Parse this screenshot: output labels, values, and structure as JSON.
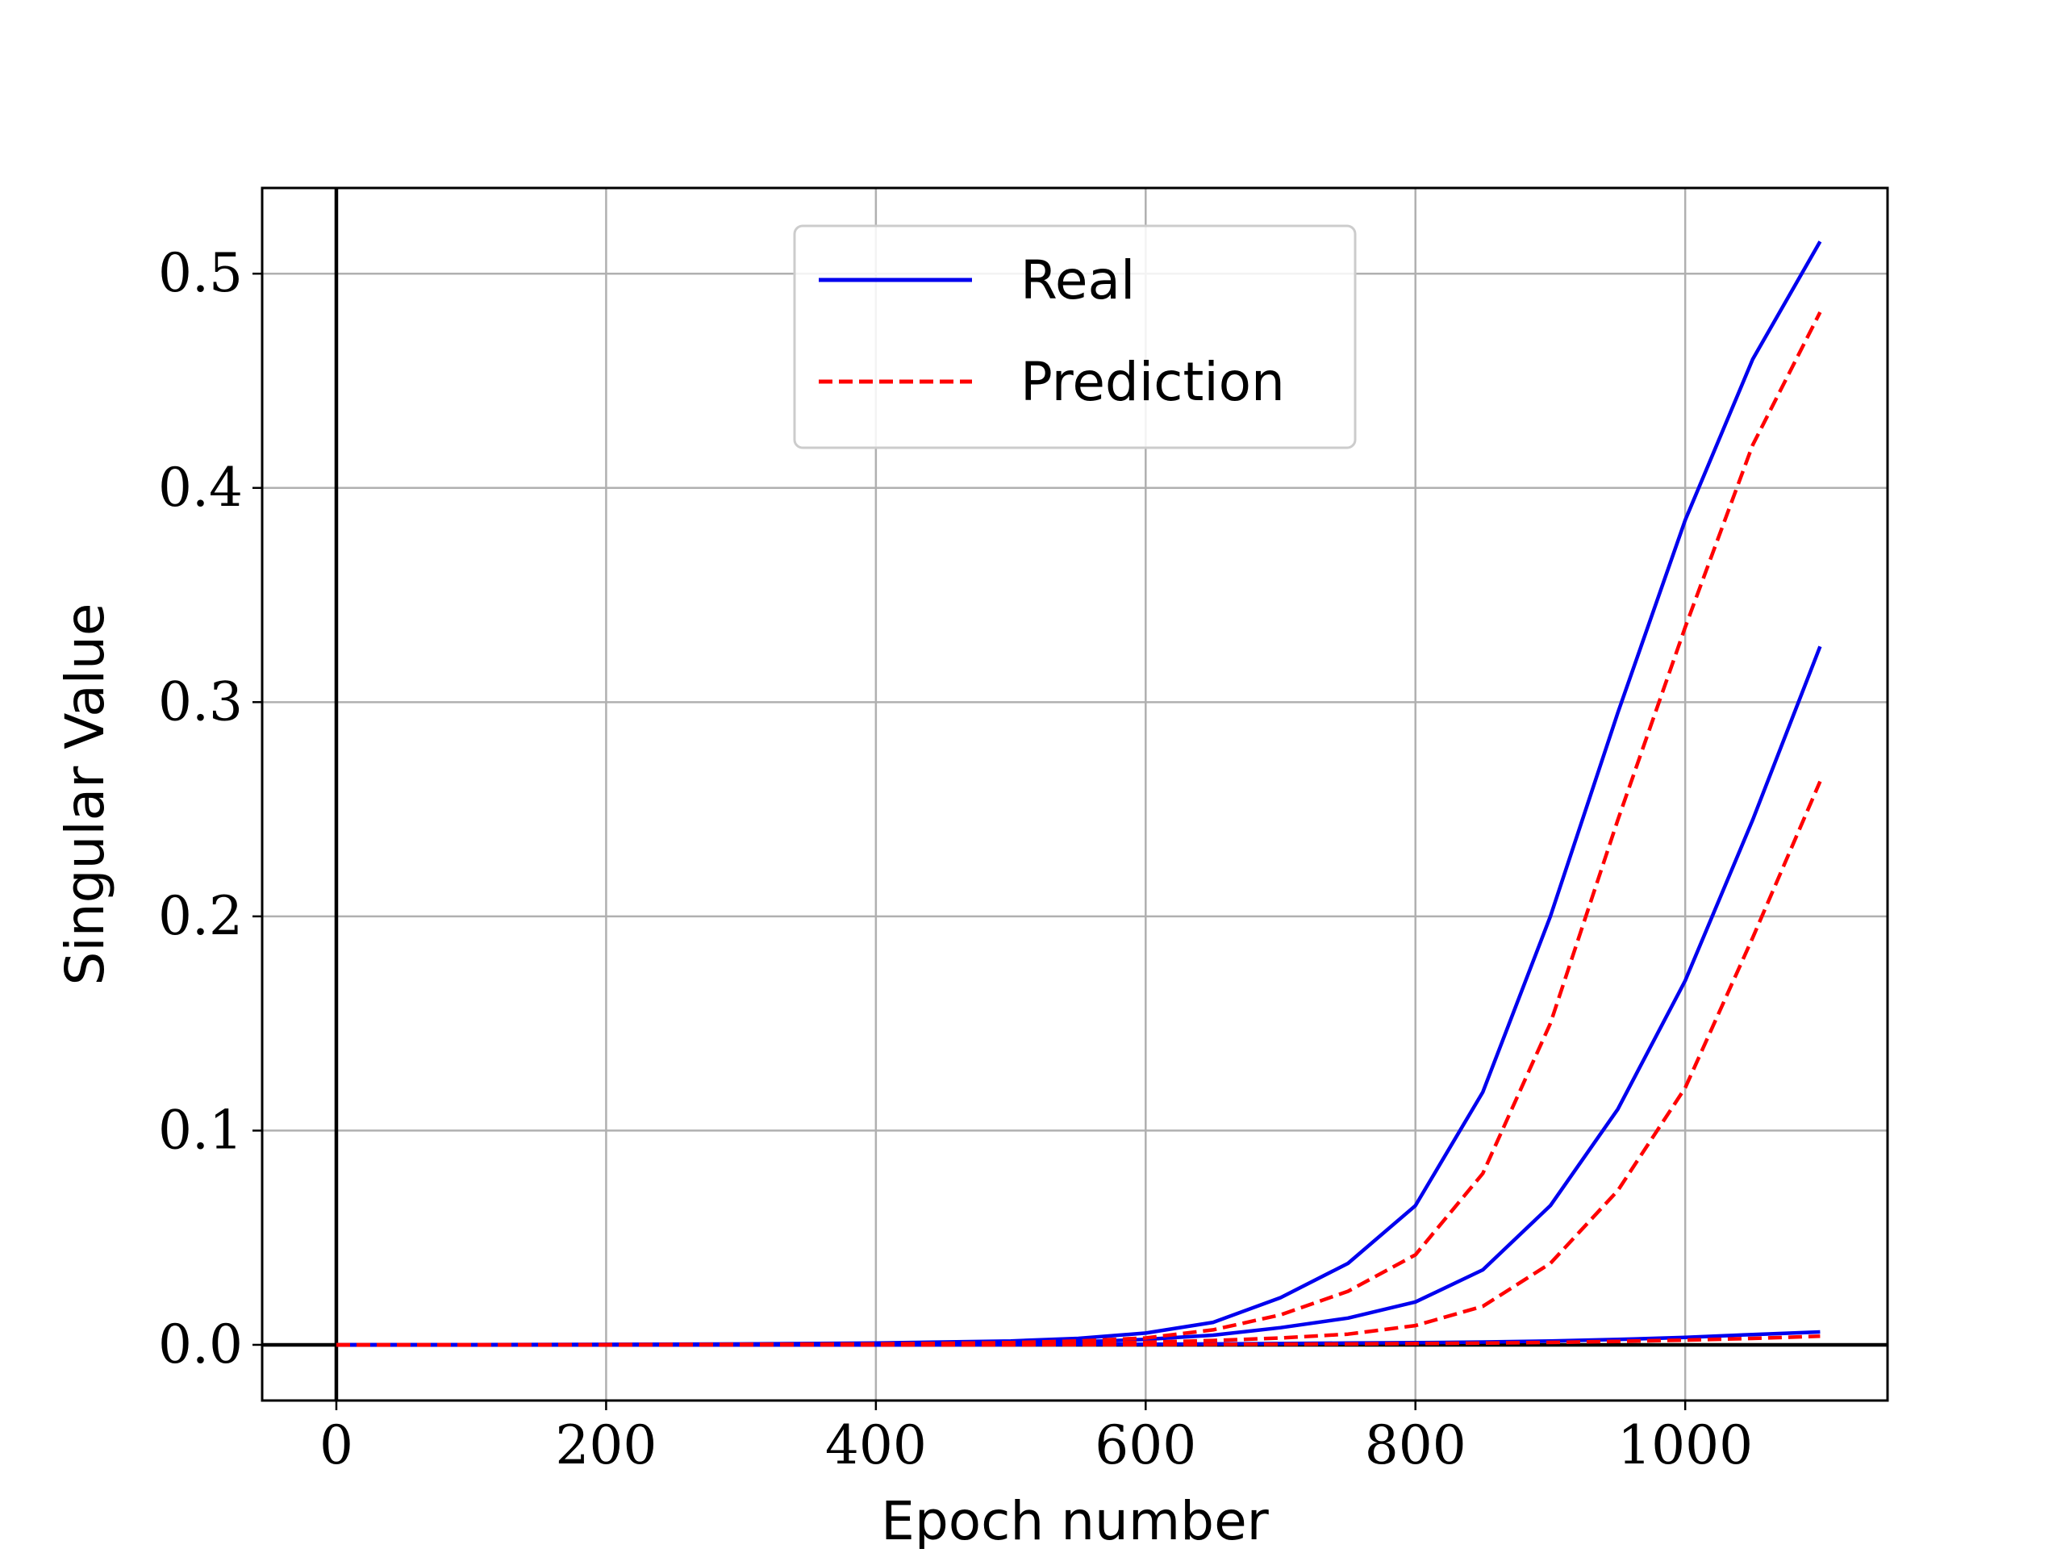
{
  "chart_data": {
    "type": "line",
    "title": "",
    "xlabel": "Epoch number",
    "ylabel": "Singular Value",
    "xlim": [
      -55,
      1150
    ],
    "ylim": [
      -0.026,
      0.54
    ],
    "xticks": [
      0,
      200,
      400,
      600,
      800,
      1000
    ],
    "yticks": [
      0.0,
      0.1,
      0.2,
      0.3,
      0.4,
      0.5
    ],
    "xtick_labels": [
      "0",
      "200",
      "400",
      "600",
      "800",
      "1000"
    ],
    "ytick_labels": [
      "0.0",
      "0.1",
      "0.2",
      "0.3",
      "0.4",
      "0.5"
    ],
    "grid": true,
    "reference_lines": {
      "x": 0,
      "y": 0
    },
    "legend": {
      "placement": "top-center",
      "entries": [
        "Real",
        "Prediction"
      ]
    },
    "colors": {
      "Real": "#0000ee",
      "Prediction": "#ff0000"
    },
    "x": [
      0,
      100,
      200,
      300,
      400,
      500,
      550,
      600,
      650,
      700,
      750,
      800,
      850,
      900,
      950,
      1000,
      1050,
      1100
    ],
    "series": [
      {
        "name": "Real",
        "style": "solid",
        "color": "#0000ee",
        "values": [
          0.0,
          0.0001,
          0.0002,
          0.0004,
          0.0008,
          0.0018,
          0.003,
          0.0055,
          0.0105,
          0.022,
          0.038,
          0.065,
          0.118,
          0.2,
          0.295,
          0.385,
          0.46,
          0.515
        ]
      },
      {
        "name": "Real",
        "style": "solid",
        "color": "#0000ee",
        "values": [
          0.0,
          0.0,
          0.0001,
          0.0002,
          0.0004,
          0.0008,
          0.0014,
          0.0025,
          0.0045,
          0.008,
          0.0125,
          0.02,
          0.035,
          0.065,
          0.11,
          0.17,
          0.245,
          0.326
        ]
      },
      {
        "name": "Real",
        "style": "solid",
        "color": "#0000ee",
        "values": [
          0.0,
          0.0,
          0.0,
          0.0,
          0.0,
          0.0001,
          0.0002,
          0.0003,
          0.0004,
          0.0006,
          0.0008,
          0.001,
          0.0013,
          0.0018,
          0.0025,
          0.0035,
          0.0048,
          0.006
        ]
      },
      {
        "name": "Prediction",
        "style": "dashed",
        "color": "#ff0000",
        "values": [
          0.0,
          0.0,
          0.0001,
          0.0002,
          0.0004,
          0.001,
          0.0018,
          0.0032,
          0.007,
          0.014,
          0.025,
          0.042,
          0.08,
          0.15,
          0.245,
          0.335,
          0.42,
          0.482
        ]
      },
      {
        "name": "Prediction",
        "style": "dashed",
        "color": "#ff0000",
        "values": [
          0.0,
          0.0,
          0.0,
          0.0001,
          0.0002,
          0.0004,
          0.0007,
          0.0012,
          0.002,
          0.0032,
          0.005,
          0.009,
          0.018,
          0.038,
          0.072,
          0.12,
          0.19,
          0.263
        ]
      },
      {
        "name": "Prediction",
        "style": "dashed",
        "color": "#ff0000",
        "values": [
          0.0,
          0.0,
          0.0,
          0.0,
          0.0,
          0.0,
          0.0001,
          0.0001,
          0.0002,
          0.0003,
          0.0004,
          0.0006,
          0.0008,
          0.0011,
          0.0016,
          0.0022,
          0.003,
          0.004
        ]
      }
    ]
  }
}
